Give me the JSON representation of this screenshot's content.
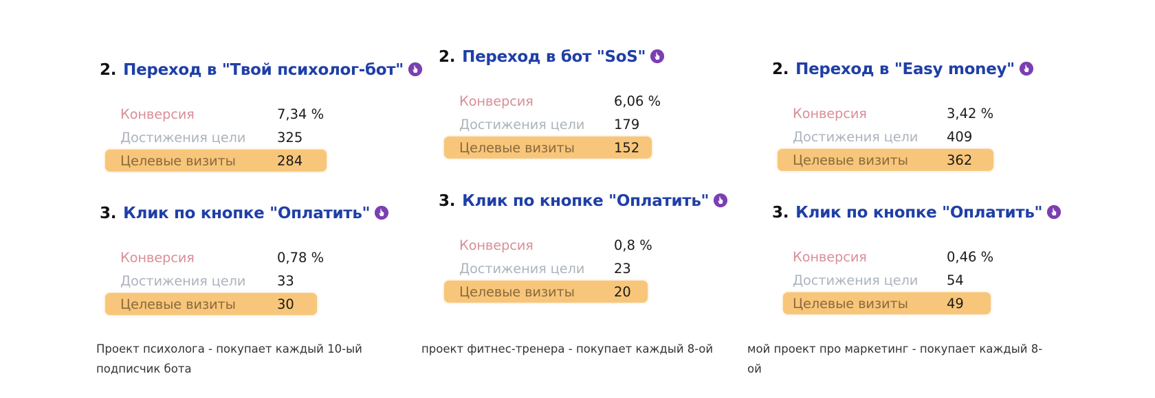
{
  "columns": [
    {
      "goals": [
        {
          "number": "2.",
          "name": "Переход в \"Твой психолог-бот\"",
          "metrics": {
            "conversion_label": "Конверсия",
            "conversion_value": "7,34 %",
            "achievements_label": "Достижения цели",
            "achievements_value": "325",
            "visits_label": "Целевые визиты",
            "visits_value": "284"
          }
        },
        {
          "number": "3.",
          "name": "Клик по кнопке \"Оплатить\"",
          "metrics": {
            "conversion_label": "Конверсия",
            "conversion_value": "0,78 %",
            "achievements_label": "Достижения цели",
            "achievements_value": "33",
            "visits_label": "Целевые визиты",
            "visits_value": "30"
          }
        }
      ],
      "caption": "Проект психолога - покупает каждый 10-ый подписчик бота"
    },
    {
      "goals": [
        {
          "number": "2.",
          "name": "Переход в бот \"SoS\"",
          "metrics": {
            "conversion_label": "Конверсия",
            "conversion_value": "6,06 %",
            "achievements_label": "Достижения цели",
            "achievements_value": "179",
            "visits_label": "Целевые визиты",
            "visits_value": "152"
          }
        },
        {
          "number": "3.",
          "name": "Клик по кнопке \"Оплатить\"",
          "metrics": {
            "conversion_label": "Конверсия",
            "conversion_value": "0,8 %",
            "achievements_label": "Достижения цели",
            "achievements_value": "23",
            "visits_label": "Целевые визиты",
            "visits_value": "20"
          }
        }
      ],
      "caption": "проект фитнес-тренера - покупает каждый 8-ой"
    },
    {
      "goals": [
        {
          "number": "2.",
          "name": "Переход в \"Easy money\"",
          "metrics": {
            "conversion_label": "Конверсия",
            "conversion_value": "3,42 %",
            "achievements_label": "Достижения цели",
            "achievements_value": "409",
            "visits_label": "Целевые визиты",
            "visits_value": "362"
          }
        },
        {
          "number": "3.",
          "name": "Клик по кнопке \"Оплатить\"",
          "metrics": {
            "conversion_label": "Конверсия",
            "conversion_value": "0,46 %",
            "achievements_label": "Достижения цели",
            "achievements_value": "54",
            "visits_label": "Целевые визиты",
            "visits_value": "49"
          }
        }
      ],
      "caption": "мой проект про маркетинг - покупает каждый 8-ой"
    }
  ],
  "icons": {
    "goal_icon": "hand-pointer-icon"
  },
  "colors": {
    "goal_title": "#1f3fa6",
    "icon": "#7b3fb0",
    "conversion_label": "#d98f98",
    "achievements_label": "#adb4bd",
    "visits_highlight": "#f8c67a"
  }
}
